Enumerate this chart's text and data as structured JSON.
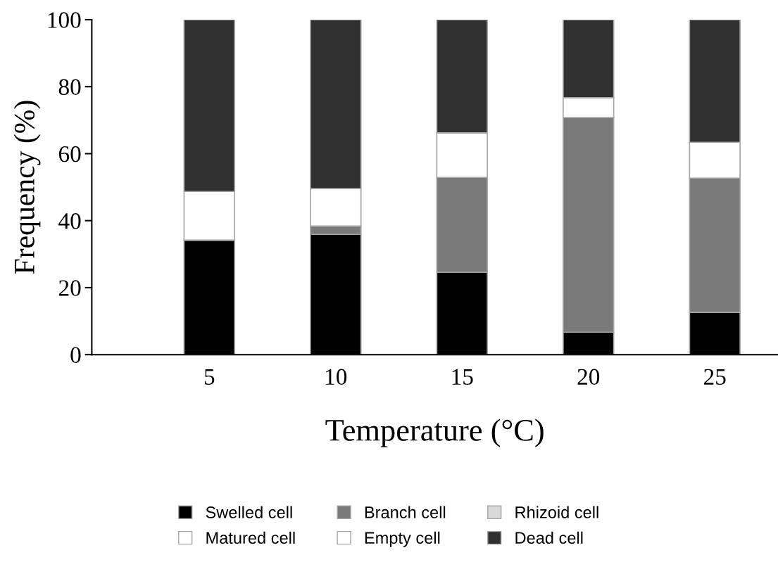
{
  "chart_data": {
    "type": "bar",
    "stacked": true,
    "xlabel": "Temperature (°C)",
    "ylabel": "Frequency (%)",
    "categories": [
      "5",
      "10",
      "15",
      "20",
      "25"
    ],
    "series": [
      {
        "name": "Swelled cell",
        "color": "#000000",
        "values": [
          34.2,
          35.9,
          24.6,
          6.7,
          12.6
        ]
      },
      {
        "name": "Branch cell",
        "color": "#7a7a7a",
        "values": [
          0,
          2.5,
          28.3,
          64.1,
          40.1
        ]
      },
      {
        "name": "Rhizoid cell",
        "color": "#d9d9d9",
        "values": [
          0,
          0,
          0,
          0,
          0
        ]
      },
      {
        "name": "Matured cell",
        "color": "#ffffff",
        "values": [
          0,
          0,
          0,
          0,
          0
        ]
      },
      {
        "name": "Empty cell",
        "color": "#ffffff",
        "values": [
          14.5,
          11.2,
          13.3,
          5.9,
          10.7
        ]
      },
      {
        "name": "Dead cell",
        "color": "#303030",
        "values": [
          51.3,
          50.4,
          33.8,
          23.3,
          36.6
        ]
      }
    ],
    "ylim": [
      0,
      100
    ],
    "yticks": [
      0,
      20,
      40,
      60,
      80,
      100
    ],
    "grid": false,
    "legend": "bottom"
  }
}
